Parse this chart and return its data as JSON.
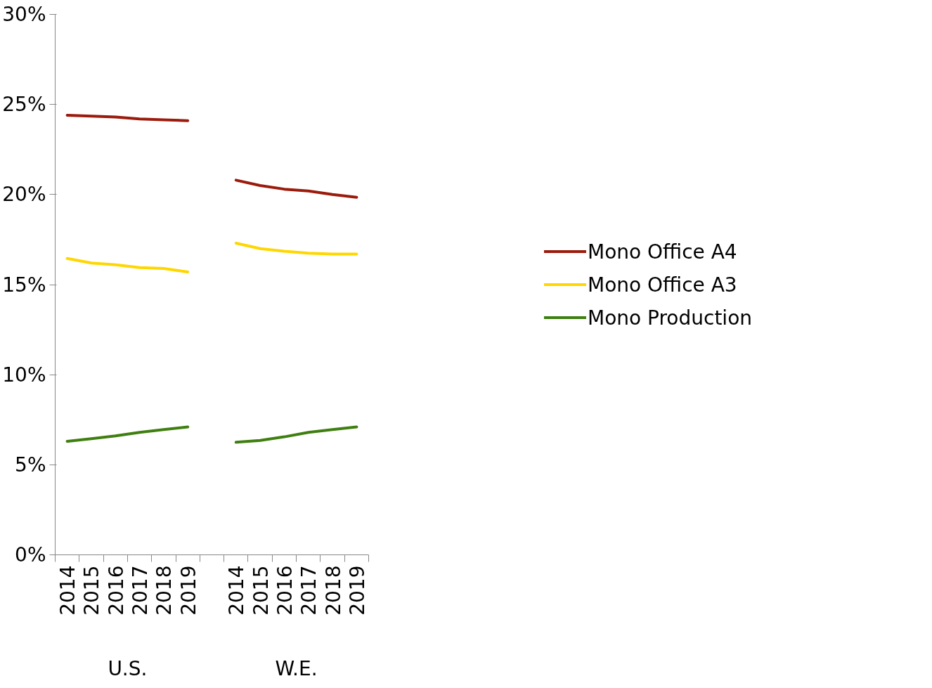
{
  "chart_data": {
    "type": "line",
    "categories": [
      "2014",
      "2015",
      "2016",
      "2017",
      "2018",
      "2019",
      null,
      "2014",
      "2015",
      "2016",
      "2017",
      "2018",
      "2019"
    ],
    "series": [
      {
        "name": "Mono Office A4",
        "color": "#9b1b0c",
        "values": [
          24.4,
          24.35,
          24.3,
          24.2,
          24.15,
          24.1,
          null,
          20.8,
          20.5,
          20.3,
          20.2,
          20.0,
          19.85
        ]
      },
      {
        "name": "Mono Office A3",
        "color": "#ffd700",
        "values": [
          16.45,
          16.2,
          16.1,
          15.95,
          15.9,
          15.7,
          null,
          17.3,
          17.0,
          16.85,
          16.75,
          16.7,
          16.7
        ]
      },
      {
        "name": "Mono Production",
        "color": "#3f7f10",
        "values": [
          6.3,
          6.45,
          6.6,
          6.8,
          6.95,
          7.1,
          null,
          6.25,
          6.35,
          6.55,
          6.8,
          6.95,
          7.1
        ]
      }
    ],
    "ylim": [
      0,
      30
    ],
    "yticks": [
      {
        "value": 0,
        "label": "0%"
      },
      {
        "value": 5,
        "label": "5%"
      },
      {
        "value": 10,
        "label": "10%"
      },
      {
        "value": 15,
        "label": "15%"
      },
      {
        "value": 20,
        "label": "20%"
      },
      {
        "value": 25,
        "label": "25%"
      },
      {
        "value": 30,
        "label": "30%"
      }
    ],
    "annotations": [
      "U.S.",
      "W.E."
    ],
    "grid": false,
    "legend": "right",
    "marker": "none",
    "line_style": "solid"
  }
}
